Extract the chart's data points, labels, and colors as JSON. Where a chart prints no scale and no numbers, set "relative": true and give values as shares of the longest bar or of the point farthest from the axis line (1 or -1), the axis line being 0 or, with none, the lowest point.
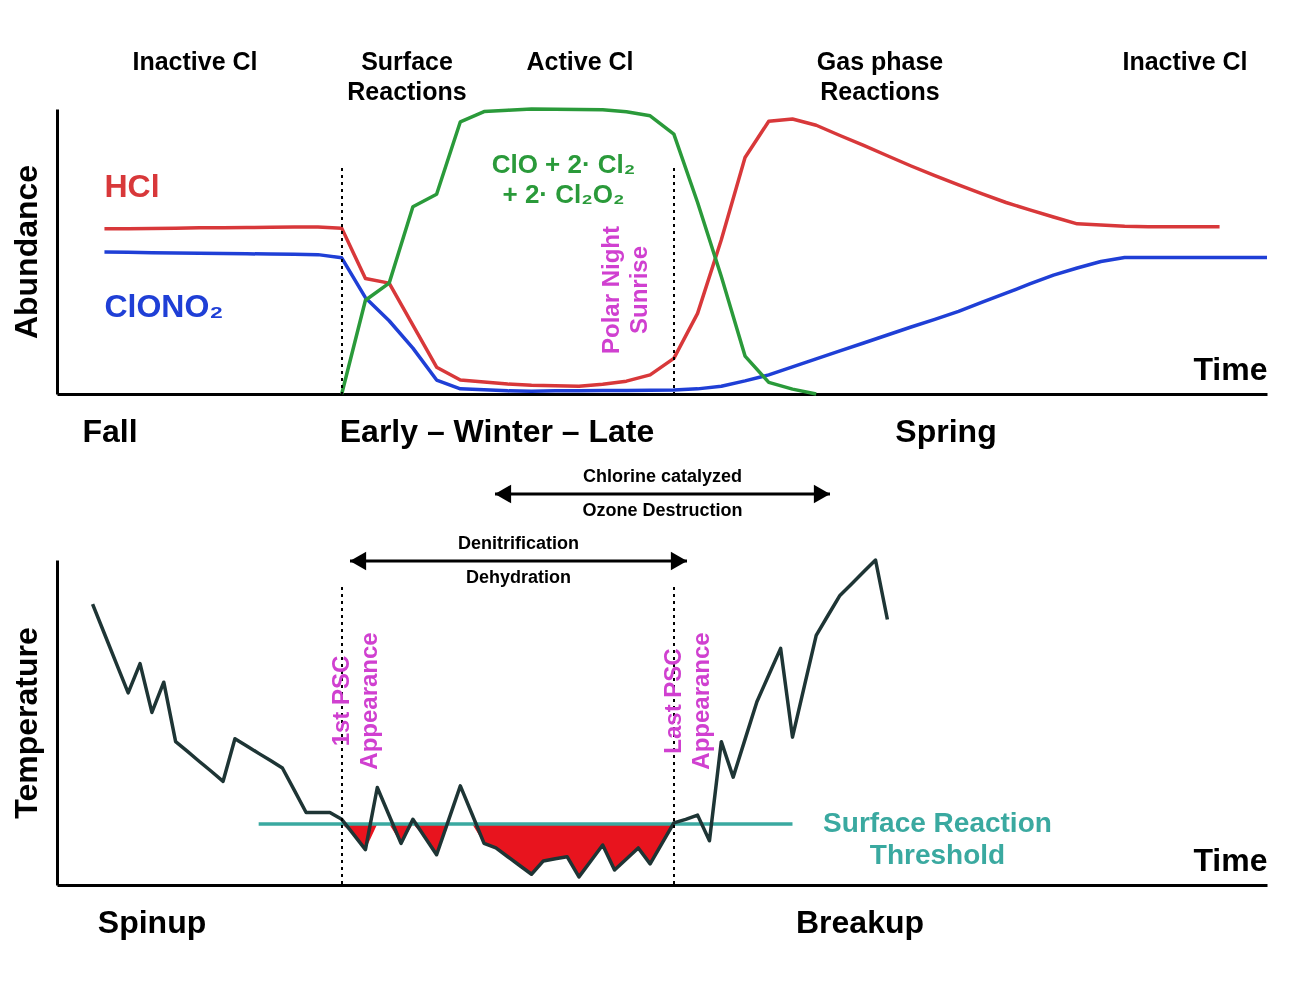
{
  "chart_data": [
    {
      "type": "line",
      "relative": true,
      "ylabel": "Abundance",
      "xlabel": "Time",
      "categories": [
        null,
        null,
        null,
        null,
        null,
        null,
        null,
        null,
        null,
        null,
        null,
        null,
        null,
        null,
        null,
        null,
        null,
        null,
        null,
        null,
        null,
        null,
        null,
        null,
        null,
        null,
        null,
        null,
        null,
        null,
        null,
        null,
        null,
        null,
        null,
        null,
        null,
        null,
        null,
        null,
        null,
        null,
        null,
        null,
        null,
        null,
        null,
        null,
        null,
        null,
        null,
        null
      ],
      "series": [
        {
          "name": "HCl",
          "color": "#d8383a",
          "values": [
            null,
            null,
            0.58,
            0.58,
            0.581,
            0.582,
            0.583,
            0.583,
            0.584,
            0.585,
            0.586,
            0.586,
            0.582,
            0.405,
            0.389,
            0.242,
            0.094,
            0.049,
            0.042,
            0.035,
            0.031,
            0.029,
            0.027,
            0.034,
            0.045,
            0.067,
            0.125,
            0.283,
            0.541,
            0.83,
            0.957,
            0.965,
            0.943,
            0.907,
            0.872,
            0.836,
            0.8,
            0.766,
            0.734,
            0.702,
            0.672,
            0.646,
            0.621,
            0.597,
            0.593,
            0.589,
            0.587,
            0.587,
            0.587,
            0.587,
            null,
            null
          ]
        },
        {
          "name": "ClONO₂",
          "color": "#1f3fd6",
          "values": [
            null,
            null,
            0.498,
            0.497,
            0.496,
            0.495,
            0.494,
            0.493,
            0.492,
            0.491,
            0.49,
            0.489,
            0.478,
            0.338,
            0.257,
            0.161,
            0.049,
            0.018,
            0.015,
            0.011,
            0.01,
            0.011,
            0.011,
            0.012,
            0.012,
            0.013,
            0.014,
            0.018,
            0.027,
            0.046,
            0.067,
            0.095,
            0.123,
            0.151,
            0.179,
            0.207,
            0.235,
            0.262,
            0.29,
            0.322,
            0.354,
            0.386,
            0.417,
            0.442,
            0.465,
            0.479,
            0.479,
            0.479,
            0.479,
            0.479,
            0.479,
            0.479
          ]
        },
        {
          "name": "ClO + 2· Cl₂\n+ 2· Cl₂O₂",
          "color": "#2a9a3a",
          "values": [
            null,
            null,
            null,
            null,
            null,
            null,
            null,
            null,
            null,
            null,
            null,
            null,
            0,
            0.329,
            0.389,
            0.657,
            0.701,
            0.955,
            0.991,
            0.996,
            1.0,
            0.999,
            0.998,
            0.997,
            0.99,
            0.976,
            0.912,
            0.672,
            0.412,
            0.133,
            0.041,
            0.017,
            0,
            null,
            null,
            null,
            null,
            null,
            null,
            null,
            null,
            null,
            null,
            null,
            null,
            null,
            null,
            null,
            null,
            null,
            null,
            null
          ]
        }
      ],
      "annotations": [
        "Inactive Cl",
        "Surface\nReactions",
        "Active Cl",
        "Gas phase\nReactions",
        "Inactive Cl",
        "Fall",
        "Early – Winter – Late",
        "Spring",
        "Polar Night\nSunrise",
        "Chlorine catalyzed\nOzone Destruction"
      ]
    },
    {
      "type": "line",
      "relative": true,
      "ylabel": "Temperature",
      "xlabel": "Time",
      "categories": [
        null,
        null,
        null,
        null,
        null,
        null,
        null,
        null,
        null,
        null,
        null,
        null,
        null,
        null,
        null,
        null,
        null,
        null,
        null,
        null,
        null,
        null,
        null,
        null,
        null,
        null,
        null,
        null,
        null,
        null,
        null,
        null,
        null,
        null,
        null,
        null,
        null,
        null,
        null,
        null,
        null,
        null,
        null,
        null,
        null,
        null,
        null,
        null,
        null,
        null,
        null,
        null,
        null,
        null,
        null,
        null,
        null,
        null,
        null,
        null,
        null,
        null,
        null,
        null,
        null,
        null,
        null,
        null,
        null,
        null,
        null,
        null,
        null,
        null,
        null,
        null,
        null,
        null,
        null,
        null,
        null,
        null,
        null,
        null,
        null,
        null,
        null,
        null,
        null,
        null,
        null,
        null,
        null,
        null,
        null,
        null,
        null,
        null,
        null,
        null,
        null,
        null,
        null
      ],
      "series": [
        {
          "name": "Surface Reaction\nThreshold",
          "color": "#3aa9a0",
          "lower": [
            null,
            null,
            null,
            null,
            null,
            null,
            null,
            null,
            null,
            null,
            null,
            null,
            null,
            null,
            null,
            null,
            null,
            null,
            null,
            null,
            null,
            null,
            null,
            null,
            0.188,
            0.156,
            0.109,
            0.188,
            0.188,
            0.128,
            0.188,
            0.148,
            0.093,
            0.188,
            0.188,
            0.188,
            0.128,
            0.114,
            0.087,
            0.06,
            0.033,
            0.074,
            0.081,
            0.087,
            0.025,
            0.074,
            0.123,
            0.046,
            0.08,
            0.114,
            0.065,
            0.128,
            0.188,
            0.188,
            null,
            null,
            null,
            null,
            null,
            null,
            null,
            null,
            null,
            null,
            null,
            null,
            null,
            null,
            null,
            null,
            null,
            null,
            null,
            null,
            null,
            null,
            null,
            null,
            null,
            null,
            null,
            null,
            null,
            null,
            null,
            null,
            null,
            null,
            null,
            null,
            null,
            null,
            null,
            null,
            null,
            null,
            null,
            null,
            null,
            null,
            null,
            null,
            null
          ],
          "upper": [
            null,
            null,
            null,
            null,
            null,
            null,
            null,
            null,
            null,
            null,
            null,
            null,
            null,
            null,
            null,
            null,
            null,
            null,
            null,
            null,
            null,
            null,
            null,
            null,
            0.188,
            0.188,
            0.188,
            0.188,
            0.188,
            0.188,
            0.188,
            0.188,
            0.188,
            0.188,
            0.188,
            0.188,
            0.188,
            0.188,
            0.188,
            0.188,
            0.188,
            0.188,
            0.188,
            0.188,
            0.188,
            0.188,
            0.188,
            0.188,
            0.188,
            0.188,
            0.188,
            0.188,
            0.188,
            0.188,
            null,
            null,
            null,
            null,
            null,
            null,
            null,
            null,
            null,
            null,
            null,
            null,
            null,
            null,
            null,
            null,
            null,
            null,
            null,
            null,
            null,
            null,
            null,
            null,
            null,
            null,
            null,
            null,
            null,
            null,
            null,
            null,
            null,
            null,
            null,
            null,
            null,
            null,
            null,
            null,
            null,
            null,
            null,
            null,
            null,
            null,
            null,
            null,
            null
          ],
          "values": [
            null,
            null,
            null,
            null,
            null,
            null,
            null,
            null,
            null,
            null,
            null,
            null,
            null,
            null,
            null,
            null,
            null,
            0.188,
            0.188,
            0.188,
            0.188,
            0.188,
            0.188,
            0.188,
            0.188,
            0.188,
            0.188,
            0.188,
            0.188,
            0.188,
            0.188,
            0.188,
            0.188,
            0.188,
            0.188,
            0.188,
            0.188,
            0.188,
            0.188,
            0.188,
            0.188,
            0.188,
            0.188,
            0.188,
            0.188,
            0.188,
            0.188,
            0.188,
            0.188,
            0.188,
            0.188,
            0.188,
            0.188,
            0.188,
            0.188,
            0.188,
            0.188,
            0.188,
            0.188,
            0.188,
            0.188,
            0.188,
            0.188,
            null,
            null,
            null,
            null,
            null,
            null,
            null,
            null,
            null,
            null,
            null,
            null,
            null,
            null,
            null,
            null,
            null,
            null,
            null,
            null,
            null,
            null,
            null,
            null,
            null,
            null,
            null,
            null,
            null,
            null,
            null,
            null,
            null,
            null,
            null,
            null,
            null,
            null,
            null,
            null
          ]
        },
        {
          "color": "#1e3535",
          "values": [
            null,
            null,
            null,
            0.864,
            0.773,
            0.682,
            0.591,
            0.681,
            0.531,
            0.624,
            0.441,
            0.411,
            0.38,
            0.35,
            0.319,
            0.45,
            0.428,
            0.405,
            0.383,
            0.36,
            0.292,
            0.223,
            0.223,
            0.223,
            0.202,
            0.156,
            0.109,
            0.3,
            0.214,
            0.128,
            0.202,
            0.148,
            0.093,
            0.199,
            0.305,
            0.217,
            0.128,
            0.114,
            0.087,
            0.06,
            0.033,
            0.074,
            0.081,
            0.087,
            0.025,
            0.074,
            0.123,
            0.046,
            0.08,
            0.114,
            0.065,
            0.128,
            0.191,
            0.202,
            0.215,
            0.136,
            0.441,
            0.332,
            0.448,
            0.564,
            0.646,
            0.728,
            0.455,
            0.612,
            0.768,
            0.83,
            0.891,
            0.927,
            0.964,
            1.0,
            0.817,
            null,
            null,
            null,
            null,
            null,
            null,
            null,
            null,
            null,
            null,
            null,
            null,
            null,
            null,
            null,
            null,
            null,
            null,
            null,
            null,
            null,
            null,
            null,
            null,
            null,
            null,
            null,
            null,
            null,
            null,
            null,
            null
          ]
        }
      ],
      "annotations": [
        "Spinup",
        "Breakup",
        "Denitrification\nDehydration",
        "1st PSC\nAppearance",
        "Last  PSC\nAppearance"
      ]
    }
  ]
}
